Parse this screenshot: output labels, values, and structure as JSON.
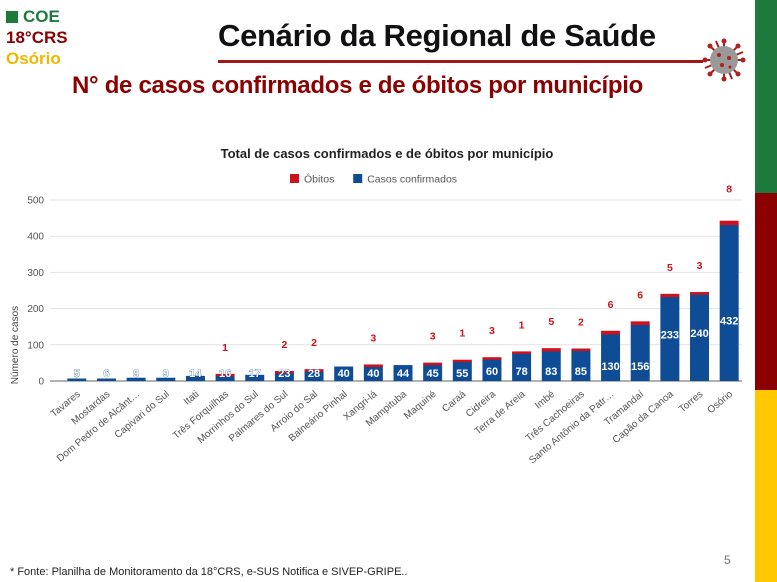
{
  "slide": {
    "logo": {
      "line1": "COE",
      "line2": "18°CRS",
      "line3": "Osório"
    },
    "title": "Cenário da Regional de Saúde",
    "subtitle": "N° de casos confirmados e de óbitos por município",
    "footer": "* Fonte: Planilha de Monitoramento da 18°CRS, e-SUS Notifica e SIVEP-GRIPE..",
    "page_number": "5",
    "colors": {
      "green": "#1e7a3c",
      "red": "#8b0000",
      "yellow": "#ffc800"
    }
  },
  "chart_data": {
    "type": "bar",
    "stacked": true,
    "title": "Total de casos confirmados e de óbitos por município",
    "xlabel": "",
    "ylabel": "Número de casos",
    "ylim": [
      0,
      500
    ],
    "yticks": [
      0,
      100,
      200,
      300,
      400,
      500
    ],
    "grid": true,
    "legend_position": "top",
    "categories": [
      "Tavares",
      "Mostardas",
      "Dom Pedro de Alcânt…",
      "Capivari do Sul",
      "Itati",
      "Três Forquilhas",
      "Morrinhos do Sul",
      "Palmares do Sul",
      "Arroio do Sal",
      "Balneário Pinhal",
      "Xangri-lá",
      "Mampituba",
      "Maquiné",
      "Caraá",
      "Cidreira",
      "Terra de Areia",
      "Imbé",
      "Três Cachoeiras",
      "Santo Antônio da Patr…",
      "Tramandaí",
      "Capão da Canoa",
      "Torres",
      "Osório"
    ],
    "series": [
      {
        "name": "Óbitos",
        "color": "#d0111b",
        "values": [
          0,
          0,
          0,
          0,
          0,
          1,
          0,
          2,
          2,
          0,
          3,
          0,
          3,
          1,
          3,
          1,
          5,
          2,
          6,
          6,
          5,
          3,
          8
        ]
      },
      {
        "name": "Casos confirmados",
        "color": "#0f4c96",
        "values": [
          5,
          6,
          9,
          9,
          14,
          16,
          17,
          23,
          28,
          40,
          40,
          44,
          45,
          55,
          60,
          78,
          83,
          85,
          130,
          156,
          233,
          240,
          432
        ]
      }
    ]
  }
}
